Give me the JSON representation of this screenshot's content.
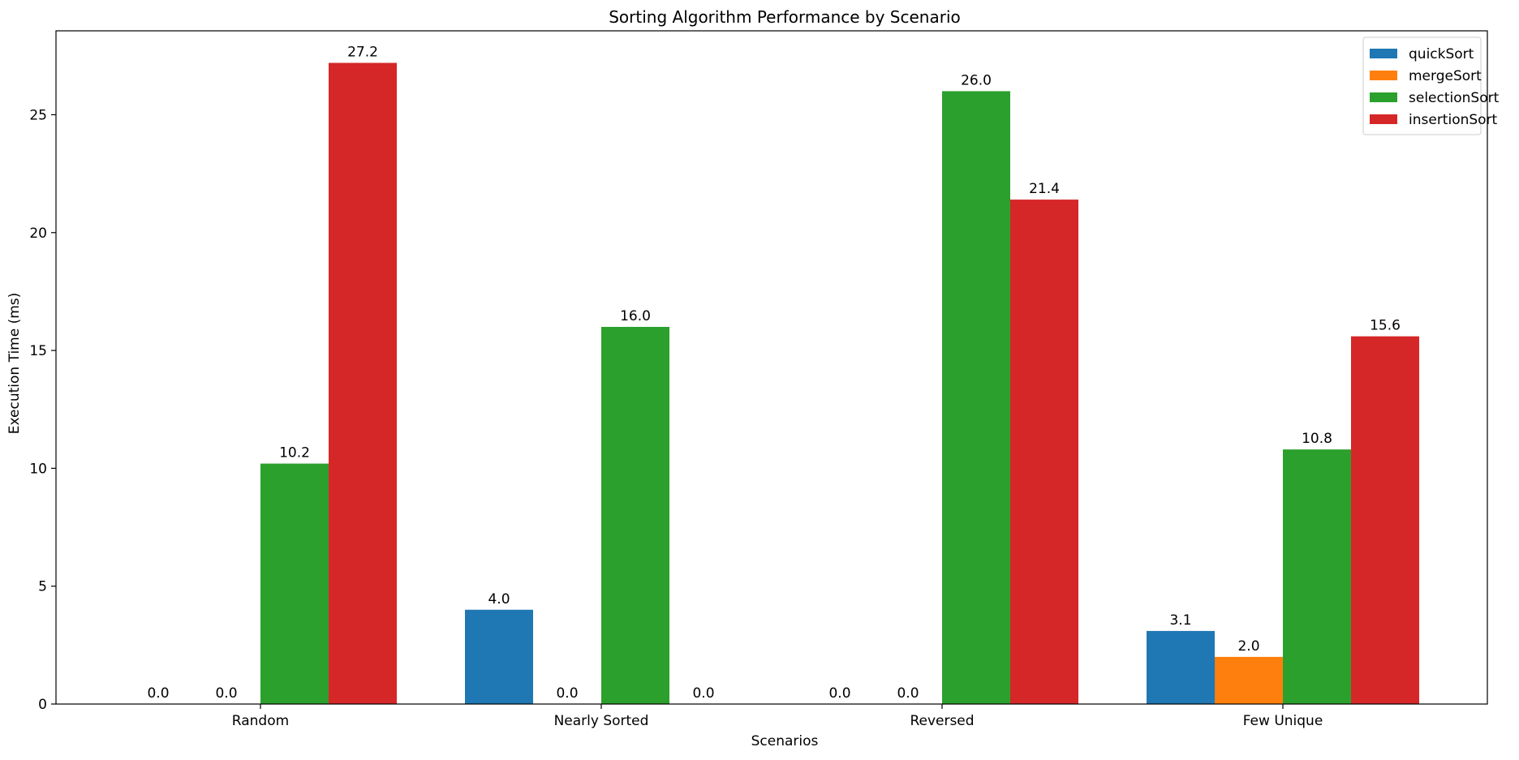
{
  "chart_data": {
    "type": "bar",
    "title": "Sorting Algorithm Performance by Scenario",
    "xlabel": "Scenarios",
    "ylabel": "Execution Time (ms)",
    "categories": [
      "Random",
      "Nearly Sorted",
      "Reversed",
      "Few Unique"
    ],
    "ylim": [
      0,
      28.56
    ],
    "yticks": [
      0,
      5,
      10,
      15,
      20,
      25
    ],
    "grid": false,
    "legend_position": "top-right",
    "series": [
      {
        "name": "quickSort",
        "color": "#1f77b4",
        "values": [
          0.0,
          4.0,
          0.0,
          3.1
        ],
        "labels": [
          "0.0",
          "4.0",
          "0.0",
          "3.1"
        ]
      },
      {
        "name": "mergeSort",
        "color": "#ff7f0e",
        "values": [
          0.0,
          0.0,
          0.0,
          2.0
        ],
        "labels": [
          "0.0",
          "0.0",
          "0.0",
          "2.0"
        ]
      },
      {
        "name": "selectionSort",
        "color": "#2ca02c",
        "values": [
          10.2,
          16.0,
          26.0,
          10.8
        ],
        "labels": [
          "10.2",
          "16.0",
          "26.0",
          "10.8"
        ]
      },
      {
        "name": "insertionSort",
        "color": "#d62728",
        "values": [
          27.2,
          0.0,
          21.4,
          15.6
        ],
        "labels": [
          "27.2",
          "0.0",
          "21.4",
          "15.6"
        ]
      }
    ]
  }
}
